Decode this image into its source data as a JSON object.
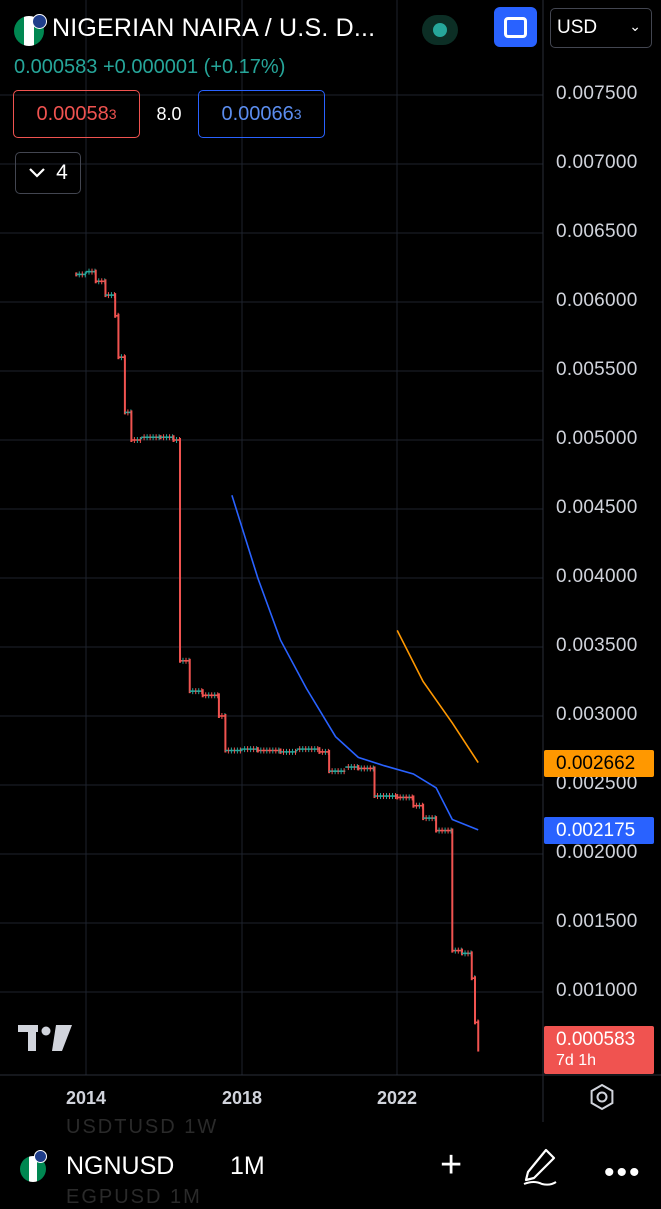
{
  "header": {
    "title": "NIGERIAN NAIRA / U.S. D...",
    "price": "0.000583",
    "change": "+0.000001",
    "change_pct": "(+0.17%)",
    "currency": "USD"
  },
  "order": {
    "sell_main": "0.00058",
    "sell_sup": "3",
    "spread": "8.0",
    "buy_main": "0.00066",
    "buy_sup": "3"
  },
  "indicators": {
    "count": "4"
  },
  "price_axis": {
    "labels": [
      "0.007500",
      "0.007000",
      "0.006500",
      "0.006000",
      "0.005500",
      "0.005000",
      "0.004500",
      "0.004000",
      "0.003500",
      "0.003000",
      "0.002500",
      "0.002000",
      "0.001500",
      "0.001000"
    ]
  },
  "time_axis": {
    "labels": [
      "2014",
      "2018",
      "2022"
    ]
  },
  "tags": {
    "orange": "0.002662",
    "blue": "0.002175",
    "last_price": "0.000583",
    "countdown": "7d 1h"
  },
  "bottom": {
    "symbol": "NGNUSD",
    "interval": "1M",
    "ghost_above": "USDTUSD   1W",
    "ghost_below": "EGPUSD    1M"
  },
  "colors": {
    "up": "#26a69a",
    "down": "#f05350",
    "ma_blue": "#2962ff",
    "ma_orange": "#ff9800",
    "accent": "#2962ff"
  },
  "icons": [
    "nigeria-flag-icon",
    "usa-flag-icon",
    "live-status-icon",
    "fullscreen-icon",
    "chevron-down-icon",
    "settings-icon",
    "tradingview-logo",
    "plus-icon",
    "pen-icon",
    "more-icon"
  ],
  "chart_data": {
    "type": "line",
    "title": "NIGERIAN NAIRA / U.S. DOLLAR",
    "xlabel": "",
    "ylabel": "",
    "x_ticks": [
      "2014",
      "2018",
      "2022"
    ],
    "ylim": [
      0.0005,
      0.0078
    ],
    "series": [
      {
        "style": "candlestick",
        "color_down": "#f05350",
        "color_up": "#26a69a",
        "points": [
          [
            "2013-10",
            0.0062
          ],
          [
            "2014-01",
            0.00622
          ],
          [
            "2014-04",
            0.00615
          ],
          [
            "2014-07",
            0.00605
          ],
          [
            "2014-10",
            0.0059
          ],
          [
            "2014-11",
            0.0056
          ],
          [
            "2015-01",
            0.0052
          ],
          [
            "2015-03",
            0.005
          ],
          [
            "2015-06",
            0.00502
          ],
          [
            "2015-12",
            0.00502
          ],
          [
            "2016-04",
            0.005
          ],
          [
            "2016-06",
            0.0034
          ],
          [
            "2016-09",
            0.00318
          ],
          [
            "2017-01",
            0.00315
          ],
          [
            "2017-06",
            0.003
          ],
          [
            "2017-08",
            0.00275
          ],
          [
            "2018-01",
            0.00276
          ],
          [
            "2018-06",
            0.00275
          ],
          [
            "2019-01",
            0.00274
          ],
          [
            "2019-06",
            0.00276
          ],
          [
            "2020-01",
            0.00274
          ],
          [
            "2020-04",
            0.0026
          ],
          [
            "2020-09",
            0.00263
          ],
          [
            "2021-01",
            0.00262
          ],
          [
            "2021-06",
            0.00242
          ],
          [
            "2022-01",
            0.00241
          ],
          [
            "2022-06",
            0.00235
          ],
          [
            "2022-09",
            0.00226
          ],
          [
            "2023-01",
            0.00217
          ],
          [
            "2023-06",
            0.0013
          ],
          [
            "2023-09",
            0.00128
          ],
          [
            "2023-12",
            0.0011
          ],
          [
            "2024-01",
            0.00078
          ],
          [
            "2024-02",
            0.000583
          ]
        ]
      },
      {
        "color": "#2962ff",
        "points": [
          [
            "2017-10",
            0.0046
          ],
          [
            "2018-06",
            0.004
          ],
          [
            "2019-01",
            0.00355
          ],
          [
            "2019-09",
            0.0032
          ],
          [
            "2020-06",
            0.00285
          ],
          [
            "2021-01",
            0.0027
          ],
          [
            "2021-09",
            0.00264
          ],
          [
            "2022-06",
            0.00258
          ],
          [
            "2023-01",
            0.00248
          ],
          [
            "2023-06",
            0.00225
          ],
          [
            "2024-02",
            0.002175
          ]
        ]
      },
      {
        "color": "#ff9800",
        "points": [
          [
            "2022-01",
            0.00362
          ],
          [
            "2022-09",
            0.00325
          ],
          [
            "2023-06",
            0.00295
          ],
          [
            "2024-02",
            0.002662
          ]
        ]
      }
    ]
  }
}
